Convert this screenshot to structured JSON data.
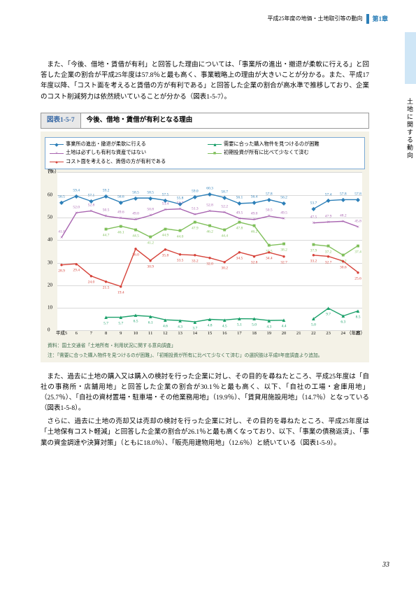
{
  "header": {
    "breadcrumb": "平成25年度の地価・土地取引等の動向",
    "chapter": "第1章"
  },
  "sideLabel": "土地に関する動向",
  "para1": "また、「今後、借地・賃借が有利」と回答した理由については、「事業所の進出・撤退が柔軟に行える」と回答した企業の割合が平成25年度は57.8％と最も高く、事業戦略上の理由が大きいことが分かる。また、平成17年度以降、「コスト面を考えると賃借の方が有利である」と回答した企業の割合が高水準で推移しており、企業のコスト削減努力は依然続いていることが分かる（図表1-5-7）。",
  "figure": {
    "label": "図表1-5-7",
    "title": "今後、借地・賃借が有利となる理由",
    "note1": "資料：国土交通省「土地所有・利用状況に関する意向調査」",
    "note2": "注：「需要に合った購入物件を見つけるのが困難」、「初期投資が所有に比べて少なくて済む」の選択肢は平成8年度調査より追加。"
  },
  "para2": "また、過去に土地の購入又は購入の検討を行った企業に対し、その目的を尋ねたところ、平成25年度は「自社の事務所・店舗用地」と回答した企業の割合が30.1％と最も高く、以下、「自社の工場・倉庫用地」（25.7％）、「自社の資材置場・駐車場・その他業務用地」（19.9％）、「賃貸用施設用地」（14.7％）となっている（図表1-5-8）。",
  "para3": "さらに、過去に土地の売却又は売却の検討を行った企業に対し、その目的を尋ねたところ、平成25年度は「土地保有コスト軽減」と回答した企業の割合が26.1％と最も高くなっており、以下、「事業の債務返済」、「事業の資金調達や決算対策」（ともに18.0％）、「販売用建物用地」（12.6％）と続いている（図表1-5-9）。",
  "pageNum": "33",
  "chart": {
    "ylabelUnit": "（％）",
    "ylim": [
      0,
      70
    ],
    "ytick_step": 10,
    "categories": [
      "平成5",
      "6",
      "7",
      "8",
      "9",
      "10",
      "11",
      "12",
      "13",
      "14",
      "15",
      "16",
      "17",
      "18",
      "19",
      "20",
      "21",
      "22",
      "23",
      "24",
      "25"
    ],
    "xsuffix": "（年度）",
    "grid_color": "#d9d9d9",
    "bg": "#ffffff",
    "series": [
      {
        "name": "事業所の進出・撤退が柔軟に行える",
        "color": "#2c7fb8",
        "marker": "◆",
        "values": [
          56.5,
          59.4,
          57.1,
          59.2,
          56.6,
          58.5,
          58.5,
          57.5,
          55.8,
          59.0,
          60.3,
          58.7,
          56.1,
          56.4,
          57.8,
          56.2,
          null,
          53.7,
          57.4,
          57.8,
          57.8
        ]
      },
      {
        "name": "需要に合った購入物件を見つけるのが困難",
        "color": "#1ba06a",
        "marker": "▲",
        "values": [
          null,
          null,
          null,
          5.7,
          5.7,
          6.5,
          6.1,
          4.6,
          4.3,
          3.7,
          4.8,
          4.5,
          5.1,
          5.0,
          4.3,
          4.4,
          null,
          5.0,
          9.7,
          6.3,
          8.5
        ]
      },
      {
        "name": "土地は必ずしも有利な資産ではない",
        "color": "#a864b0",
        "marker": "×",
        "values": [
          41.0,
          52.0,
          52.8,
          50.5,
          49.6,
          49.0,
          50.8,
          53.4,
          53.7,
          51.3,
          52.8,
          52.2,
          49.5,
          49.0,
          50.5,
          49.5,
          null,
          47.5,
          47.9,
          48.2,
          45.8
        ]
      },
      {
        "name": "初期投資が所有に比べて少なくて済む",
        "color": "#7fbf5a",
        "marker": "■",
        "values": [
          null,
          null,
          null,
          44.7,
          46.1,
          44.5,
          41.2,
          44.9,
          44.0,
          47.9,
          46.2,
          44.4,
          47.8,
          46.2,
          37.5,
          38.2,
          null,
          37.9,
          37.2,
          33.2,
          37.4
        ]
      },
      {
        "name": "コスト面を考えると、賃借の方が有利である",
        "color": "#d6433a",
        "marker": "●",
        "values": [
          28.9,
          29.4,
          24.0,
          21.5,
          19.4,
          36.0,
          30.9,
          35.8,
          33.5,
          33.2,
          32.0,
          30.2,
          34.5,
          32.8,
          34.4,
          32.7,
          null,
          33.2,
          32.7,
          30.6,
          25.6
        ]
      }
    ]
  }
}
